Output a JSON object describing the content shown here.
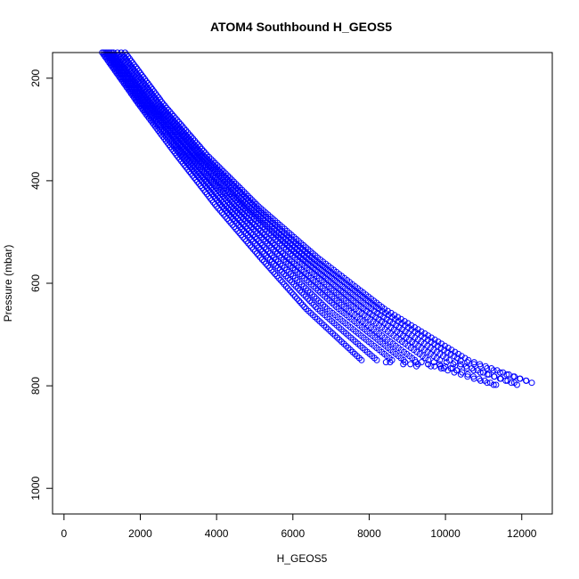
{
  "chart_data": {
    "type": "scatter",
    "title": "ATOM4 Southbound H_GEOS5",
    "xlabel": "H_GEOS5",
    "ylabel": "Pressure (mbar)",
    "xlim": [
      -300,
      12800
    ],
    "ylim": [
      1050,
      150
    ],
    "y_inverted": true,
    "grid": false,
    "legend": "none",
    "x_ticks": [
      0,
      2000,
      4000,
      6000,
      8000,
      10000,
      12000
    ],
    "y_ticks": [
      200,
      400,
      600,
      800,
      1000
    ],
    "marker": "open-circle",
    "color": "#0000ff",
    "series": [
      {
        "profile": 1,
        "points": [
          [
            1000,
            150
          ],
          [
            1950,
            250
          ],
          [
            2950,
            350
          ],
          [
            4000,
            450
          ],
          [
            5150,
            550
          ],
          [
            6350,
            650
          ],
          [
            7800,
            750
          ],
          [
            9400,
            760
          ]
        ]
      },
      {
        "profile": 2,
        "points": [
          [
            1050,
            150
          ],
          [
            2000,
            250
          ],
          [
            3050,
            350
          ],
          [
            4150,
            450
          ],
          [
            5350,
            550
          ],
          [
            6650,
            650
          ],
          [
            8200,
            750
          ],
          [
            9500,
            765
          ]
        ]
      },
      {
        "profile": 3,
        "points": [
          [
            1100,
            150
          ],
          [
            2050,
            250
          ],
          [
            3150,
            350
          ],
          [
            4250,
            450
          ],
          [
            5500,
            550
          ],
          [
            6900,
            650
          ],
          [
            8600,
            750
          ],
          [
            10300,
            770
          ]
        ]
      },
      {
        "profile": 4,
        "points": [
          [
            1150,
            150
          ],
          [
            2150,
            250
          ],
          [
            3250,
            350
          ],
          [
            4400,
            450
          ],
          [
            5700,
            550
          ],
          [
            7200,
            650
          ],
          [
            8900,
            750
          ],
          [
            10350,
            768
          ]
        ]
      },
      {
        "profile": 5,
        "points": [
          [
            1200,
            150
          ],
          [
            2200,
            250
          ],
          [
            3300,
            350
          ],
          [
            4500,
            450
          ],
          [
            5850,
            550
          ],
          [
            7400,
            650
          ],
          [
            9200,
            750
          ],
          [
            11350,
            800
          ]
        ]
      },
      {
        "profile": 6,
        "points": [
          [
            1250,
            150
          ],
          [
            2250,
            250
          ],
          [
            3400,
            350
          ],
          [
            4650,
            450
          ],
          [
            6050,
            550
          ],
          [
            7650,
            650
          ],
          [
            9550,
            750
          ],
          [
            11400,
            800
          ]
        ]
      },
      {
        "profile": 7,
        "points": [
          [
            1300,
            150
          ],
          [
            2300,
            250
          ],
          [
            3450,
            350
          ],
          [
            4750,
            450
          ],
          [
            6200,
            550
          ],
          [
            7850,
            650
          ],
          [
            9850,
            750
          ],
          [
            11850,
            795
          ]
        ]
      },
      {
        "profile": 8,
        "points": [
          [
            1400,
            150
          ],
          [
            2400,
            250
          ],
          [
            3550,
            350
          ],
          [
            4850,
            450
          ],
          [
            6350,
            550
          ],
          [
            8050,
            650
          ],
          [
            10100,
            750
          ],
          [
            11950,
            800
          ]
        ]
      },
      {
        "profile": 9,
        "points": [
          [
            1500,
            150
          ],
          [
            2500,
            250
          ],
          [
            3650,
            350
          ],
          [
            5000,
            450
          ],
          [
            6500,
            550
          ],
          [
            8250,
            650
          ],
          [
            10400,
            750
          ],
          [
            12250,
            793
          ]
        ]
      },
      {
        "profile": 10,
        "points": [
          [
            1600,
            150
          ],
          [
            2600,
            250
          ],
          [
            3750,
            350
          ],
          [
            5100,
            450
          ],
          [
            6650,
            550
          ],
          [
            8400,
            650
          ],
          [
            10600,
            750
          ],
          [
            12300,
            795
          ]
        ]
      }
    ]
  }
}
